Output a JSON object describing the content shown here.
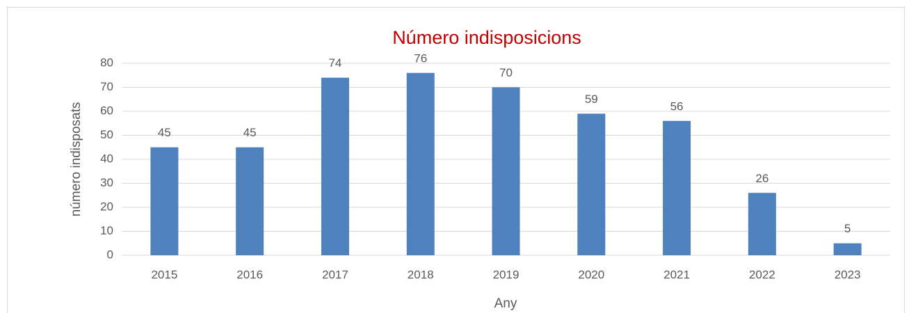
{
  "chart_data": {
    "type": "bar",
    "title": "Número indisposicions",
    "title_color": "#c00000",
    "x_label": "Any",
    "y_label": "número indisposats",
    "categories": [
      "2015",
      "2016",
      "2017",
      "2018",
      "2019",
      "2020",
      "2021",
      "2022",
      "2023"
    ],
    "values": [
      45,
      45,
      74,
      76,
      70,
      59,
      56,
      26,
      5
    ],
    "color": "#4f81bd",
    "ylim": [
      0,
      80
    ],
    "yticks": [
      0,
      10,
      20,
      30,
      40,
      50,
      60,
      70,
      80
    ],
    "grid": true
  }
}
